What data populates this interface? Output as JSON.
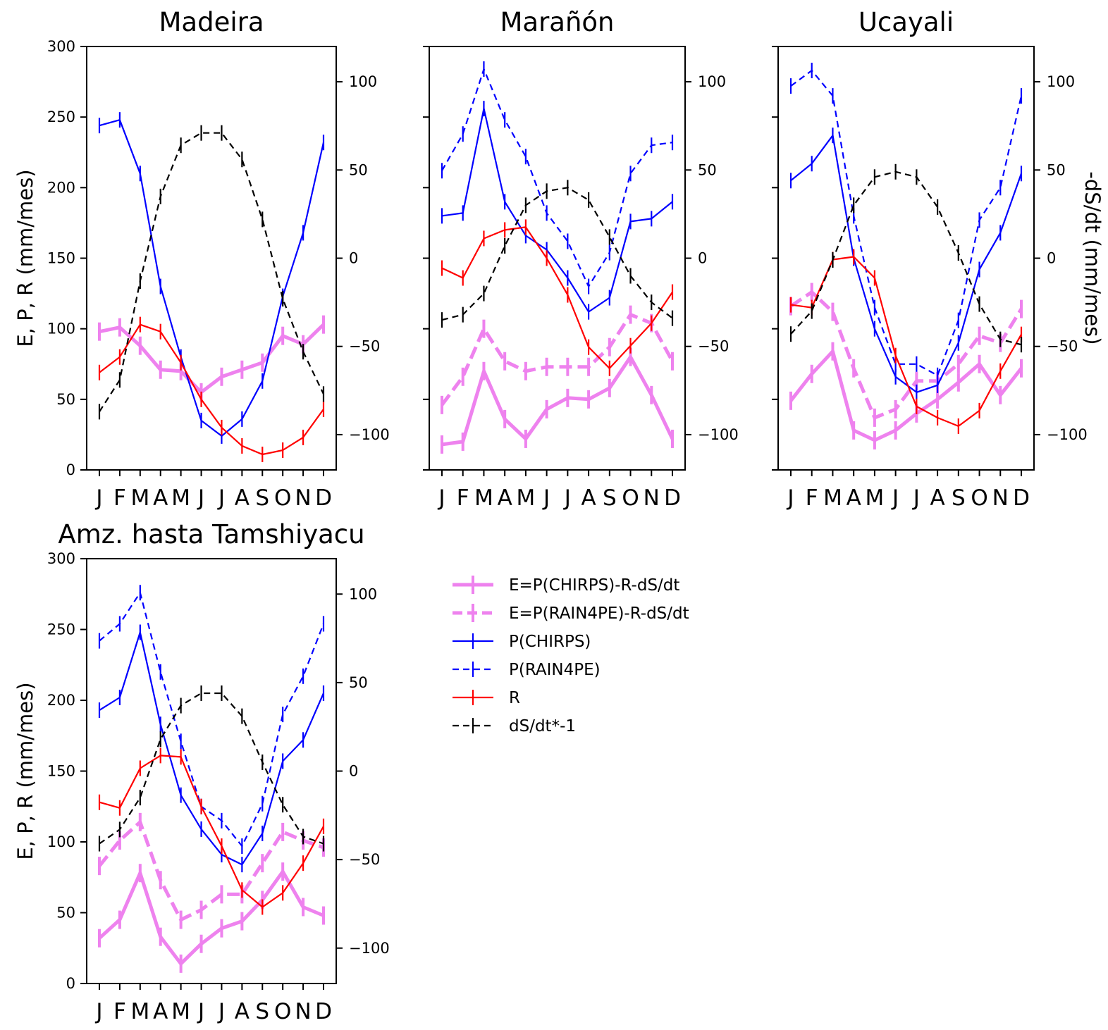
{
  "chart_data": {
    "type": "line",
    "months": [
      "J",
      "F",
      "M",
      "A",
      "M",
      "J",
      "J",
      "A",
      "S",
      "O",
      "N",
      "D"
    ],
    "left_ylabel": "E, P, R (mm/mes)",
    "right_ylabel": "-dS/dt (mm/mes)",
    "left_ylim": [
      0,
      300
    ],
    "left_ticks": [
      "0",
      "50",
      "100",
      "150",
      "200",
      "250",
      "300"
    ],
    "right_ylim": [
      -120,
      120
    ],
    "right_ticks": [
      "−100",
      "−50",
      "0",
      "50",
      "100"
    ],
    "grid": false,
    "legend": {
      "placement": "right of lower-left panel",
      "entries": [
        {
          "key": "E_CHIRPS",
          "label": "E=P(CHIRPS)-R-dS/dt",
          "color": "#ee82ee",
          "style": "solid-thick"
        },
        {
          "key": "E_RAIN4PE",
          "label": "E=P(RAIN4PE)-R-dS/dt",
          "color": "#ee82ee",
          "style": "dashed-thick"
        },
        {
          "key": "P_CHIRPS",
          "label": "P(CHIRPS)",
          "color": "#0000ff",
          "style": "solid"
        },
        {
          "key": "P_RAIN4PE",
          "label": "P(RAIN4PE)",
          "color": "#0000ff",
          "style": "dashed"
        },
        {
          "key": "R",
          "label": "R",
          "color": "#ff0000",
          "style": "solid"
        },
        {
          "key": "dS",
          "label": "dS/dt*-1",
          "color": "#000000",
          "style": "dashed"
        }
      ]
    },
    "panels": [
      {
        "title": "Madeira",
        "show_left_label": true,
        "show_right_label": false,
        "series": {
          "E_CHIRPS": [
            98,
            101,
            88,
            71,
            70,
            55,
            66,
            71,
            76,
            95,
            89,
            103
          ],
          "P_CHIRPS": [
            244,
            248,
            210,
            130,
            80,
            35,
            24,
            36,
            63,
            123,
            168,
            232
          ],
          "R": [
            69,
            80,
            103,
            98,
            76,
            50,
            30,
            17,
            11,
            14,
            23,
            43
          ],
          "dS": [
            -87,
            -69,
            -13,
            35,
            64,
            71,
            71,
            56,
            22,
            -23,
            -53,
            -77
          ]
        }
      },
      {
        "title": "Marañón",
        "show_left_label": false,
        "show_right_label": false,
        "series": {
          "E_CHIRPS": [
            18,
            20,
            70,
            36,
            22,
            43,
            51,
            50,
            58,
            80,
            53,
            22
          ],
          "E_RAIN4PE": [
            46,
            66,
            100,
            77,
            70,
            73,
            73,
            73,
            87,
            110,
            104,
            77
          ],
          "P_CHIRPS": [
            180,
            182,
            256,
            190,
            166,
            156,
            136,
            112,
            122,
            176,
            178,
            190
          ],
          "P_RAIN4PE": [
            212,
            238,
            284,
            248,
            222,
            182,
            162,
            130,
            154,
            210,
            230,
            232
          ],
          "R": [
            143,
            136,
            164,
            170,
            172,
            150,
            124,
            87,
            72,
            88,
            104,
            126
          ],
          "dS": [
            -35,
            -32,
            -20,
            7,
            30,
            38,
            40,
            33,
            12,
            -10,
            -25,
            -34
          ]
        }
      },
      {
        "title": "Ucayali",
        "show_left_label": false,
        "show_right_label": true,
        "series": {
          "E_CHIRPS": [
            49,
            68,
            84,
            28,
            21,
            28,
            40,
            50,
            62,
            75,
            53,
            72
          ],
          "E_RAIN4PE": [
            116,
            126,
            112,
            72,
            37,
            43,
            63,
            63,
            75,
            95,
            90,
            114
          ],
          "P_CHIRPS": [
            205,
            217,
            237,
            150,
            100,
            66,
            55,
            60,
            90,
            142,
            168,
            210
          ],
          "P_RAIN4PE": [
            272,
            283,
            265,
            180,
            115,
            75,
            75,
            67,
            106,
            177,
            200,
            265
          ],
          "R": [
            117,
            115,
            149,
            151,
            136,
            81,
            45,
            37,
            31,
            42,
            70,
            96
          ],
          "dS": [
            -43,
            -30,
            -1,
            30,
            46,
            49,
            46,
            29,
            3,
            -26,
            -46,
            -49
          ]
        }
      },
      {
        "title": "Amz. hasta Tamshiyacu",
        "show_left_label": true,
        "show_right_label": false,
        "series": {
          "E_CHIRPS": [
            32,
            45,
            78,
            33,
            14,
            28,
            39,
            44,
            59,
            79,
            54,
            48
          ],
          "E_RAIN4PE": [
            83,
            101,
            114,
            73,
            45,
            52,
            63,
            63,
            85,
            107,
            101,
            96
          ],
          "P_CHIRPS": [
            193,
            202,
            248,
            183,
            133,
            109,
            91,
            84,
            106,
            157,
            172,
            205
          ],
          "P_RAIN4PE": [
            242,
            254,
            276,
            220,
            171,
            125,
            115,
            97,
            127,
            190,
            217,
            254
          ],
          "R": [
            128,
            124,
            152,
            161,
            160,
            125,
            97,
            66,
            54,
            64,
            85,
            111
          ],
          "dS": [
            -41,
            -33,
            -15,
            18,
            37,
            44,
            44,
            31,
            5,
            -19,
            -37,
            -41
          ]
        }
      }
    ]
  }
}
